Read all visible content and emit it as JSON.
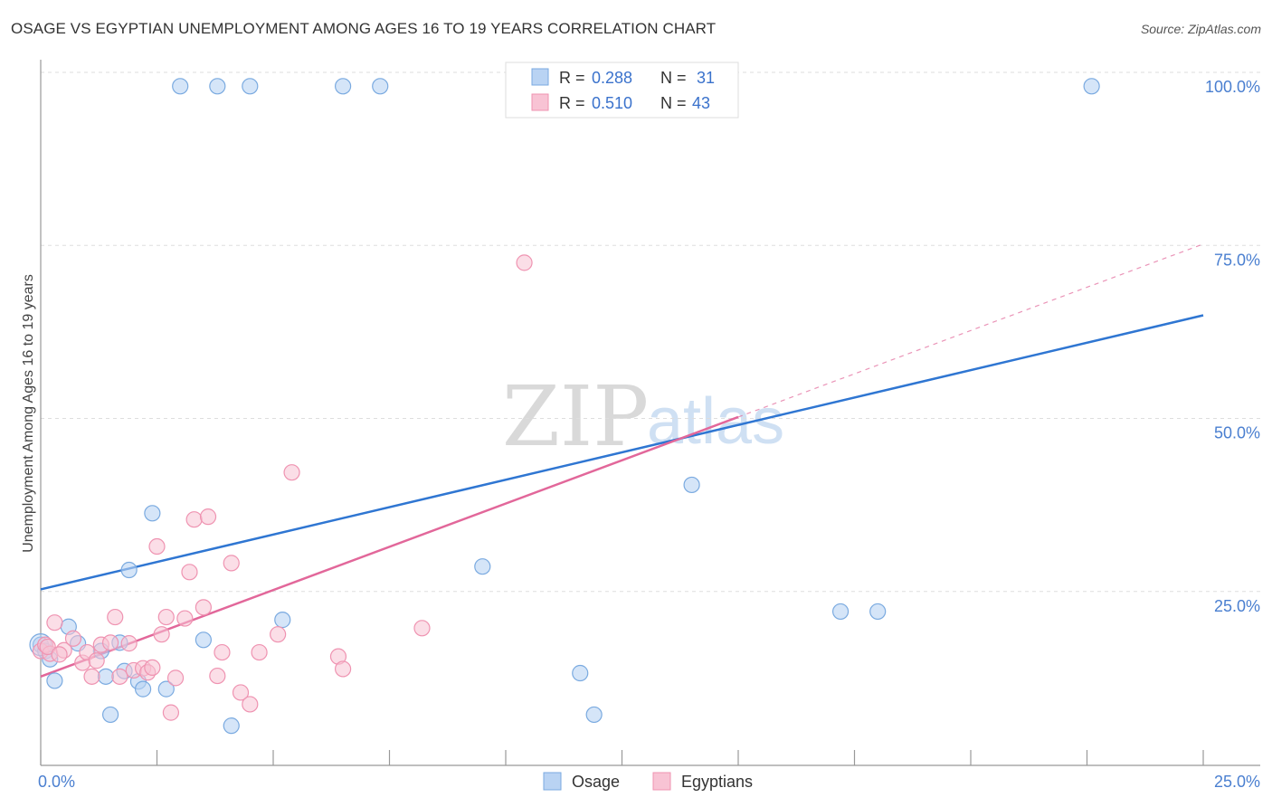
{
  "title": "OSAGE VS EGYPTIAN UNEMPLOYMENT AMONG AGES 16 TO 19 YEARS CORRELATION CHART",
  "source": "Source: ZipAtlas.com",
  "watermark": {
    "zip": "ZIP",
    "atlas": "atlas"
  },
  "colors": {
    "osage_fill": "#b9d3f3",
    "osage_stroke": "#7aaae0",
    "osage_line": "#2f76d2",
    "egyptians_fill": "#f8c3d4",
    "egyptians_stroke": "#ef93b1",
    "egyptians_line": "#e2679a",
    "tick_label": "#4a7fd0",
    "grid": "#dddddd"
  },
  "legend_box": [
    {
      "r_label": "R = ",
      "r_value": "0.288",
      "n_label": "N = ",
      "n_value": "31"
    },
    {
      "r_label": "R = ",
      "r_value": "0.510",
      "n_label": "N = ",
      "n_value": "43"
    }
  ],
  "chart_data": {
    "type": "scatter",
    "ylabel": "Unemployment Among Ages 16 to 19 years",
    "xlabel": "",
    "xlim": [
      0,
      25
    ],
    "ylim": [
      0,
      100
    ],
    "x_tick_labels": [
      "0.0%",
      "25.0%"
    ],
    "y_tick_labels": [
      "25.0%",
      "50.0%",
      "75.0%",
      "100.0%"
    ],
    "y_gridlines": [
      25,
      50,
      75,
      100
    ],
    "legend_position": "bottom-center",
    "series": [
      {
        "name": "Osage",
        "r": 0.288,
        "n": 31,
        "trend": {
          "x": [
            0,
            25
          ],
          "y": [
            25.3,
            64.9
          ]
        },
        "points": [
          [
            0.0,
            17.3
          ],
          [
            0.1,
            16.4
          ],
          [
            0.2,
            15.2
          ],
          [
            0.3,
            12.1
          ],
          [
            0.6,
            19.9
          ],
          [
            0.8,
            17.5
          ],
          [
            1.3,
            16.4
          ],
          [
            1.4,
            12.7
          ],
          [
            1.5,
            7.2
          ],
          [
            1.7,
            17.6
          ],
          [
            1.8,
            13.5
          ],
          [
            1.9,
            28.1
          ],
          [
            2.1,
            12.0
          ],
          [
            2.2,
            10.9
          ],
          [
            2.4,
            36.3
          ],
          [
            2.7,
            10.9
          ],
          [
            3.0,
            98.0
          ],
          [
            3.8,
            98.0
          ],
          [
            4.5,
            98.0
          ],
          [
            3.5,
            18.0
          ],
          [
            4.1,
            5.6
          ],
          [
            5.2,
            20.9
          ],
          [
            6.5,
            98.0
          ],
          [
            7.3,
            98.0
          ],
          [
            9.5,
            28.6
          ],
          [
            11.6,
            13.2
          ],
          [
            11.9,
            7.2
          ],
          [
            14.0,
            40.4
          ],
          [
            17.2,
            22.1
          ],
          [
            18.0,
            22.1
          ],
          [
            22.6,
            98.0
          ]
        ]
      },
      {
        "name": "Egyptians",
        "r": 0.51,
        "n": 43,
        "trend": {
          "x": [
            0,
            15
          ],
          "y": [
            12.7,
            50.2
          ]
        },
        "trend_dashed": {
          "x": [
            15,
            25
          ],
          "y": [
            50.2,
            75.2
          ]
        },
        "points": [
          [
            0.0,
            16.4
          ],
          [
            0.1,
            17.3
          ],
          [
            0.2,
            16.0
          ],
          [
            0.3,
            20.5
          ],
          [
            0.5,
            16.5
          ],
          [
            0.7,
            18.2
          ],
          [
            0.9,
            14.7
          ],
          [
            1.0,
            16.2
          ],
          [
            1.1,
            12.7
          ],
          [
            1.3,
            17.3
          ],
          [
            1.5,
            17.6
          ],
          [
            1.6,
            21.3
          ],
          [
            1.7,
            12.7
          ],
          [
            1.9,
            17.5
          ],
          [
            2.0,
            13.6
          ],
          [
            2.2,
            13.9
          ],
          [
            2.3,
            13.3
          ],
          [
            2.4,
            14.0
          ],
          [
            2.5,
            31.5
          ],
          [
            2.6,
            18.8
          ],
          [
            2.7,
            21.3
          ],
          [
            2.8,
            7.5
          ],
          [
            2.9,
            12.5
          ],
          [
            3.1,
            21.1
          ],
          [
            3.2,
            27.8
          ],
          [
            3.3,
            35.4
          ],
          [
            3.5,
            22.7
          ],
          [
            3.6,
            35.8
          ],
          [
            3.8,
            12.8
          ],
          [
            3.9,
            16.2
          ],
          [
            4.1,
            29.1
          ],
          [
            4.3,
            10.4
          ],
          [
            4.5,
            8.7
          ],
          [
            4.7,
            16.2
          ],
          [
            5.1,
            18.8
          ],
          [
            5.4,
            42.2
          ],
          [
            6.4,
            15.6
          ],
          [
            6.5,
            13.8
          ],
          [
            8.2,
            19.7
          ],
          [
            10.4,
            72.5
          ],
          [
            0.15,
            17.0
          ],
          [
            0.4,
            15.9
          ],
          [
            1.2,
            15.0
          ]
        ]
      }
    ]
  }
}
